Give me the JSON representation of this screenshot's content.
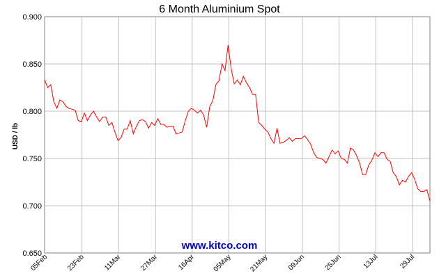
{
  "chart_data": {
    "type": "line",
    "title": "6 Month Aluminium Spot",
    "ylabel": "USD / lb",
    "xlabel": "",
    "watermark": "www.kitco.com",
    "ylim": [
      0.65,
      0.9
    ],
    "y_ticks": [
      "0.900",
      "0.850",
      "0.800",
      "0.750",
      "0.700",
      "0.650"
    ],
    "x_ticks": [
      "05Feb",
      "23Feb",
      "11Mar",
      "27Mar",
      "16Apr",
      "05May",
      "21May",
      "09Jun",
      "25Jun",
      "13Jul",
      "29Jul"
    ],
    "grid": true,
    "colors": {
      "line": "#ff0000",
      "grid": "#c0c0c0",
      "frame": "#808080",
      "watermark": "#0000cc"
    },
    "series": [
      {
        "values": [
          0.833,
          0.825,
          0.828,
          0.81,
          0.803,
          0.812,
          0.81,
          0.805,
          0.803,
          0.802,
          0.801,
          0.79,
          0.789,
          0.798,
          0.79,
          0.796,
          0.8,
          0.794,
          0.789,
          0.794,
          0.794,
          0.785,
          0.788,
          0.778,
          0.769,
          0.772,
          0.781,
          0.781,
          0.79,
          0.776,
          0.784,
          0.79,
          0.791,
          0.789,
          0.782,
          0.788,
          0.785,
          0.792,
          0.786,
          0.786,
          0.783,
          0.784,
          0.784,
          0.776,
          0.777,
          0.778,
          0.79,
          0.8,
          0.803,
          0.801,
          0.798,
          0.801,
          0.796,
          0.783,
          0.805,
          0.811,
          0.828,
          0.832,
          0.85,
          0.843,
          0.87,
          0.845,
          0.829,
          0.833,
          0.828,
          0.837,
          0.83,
          0.825,
          0.818,
          0.818,
          0.788,
          0.785,
          0.781,
          0.778,
          0.771,
          0.766,
          0.782,
          0.766,
          0.767,
          0.769,
          0.772,
          0.768,
          0.771,
          0.771,
          0.771,
          0.774,
          0.77,
          0.765,
          0.756,
          0.751,
          0.75,
          0.749,
          0.745,
          0.752,
          0.759,
          0.755,
          0.758,
          0.75,
          0.749,
          0.745,
          0.761,
          0.759,
          0.753,
          0.745,
          0.733,
          0.733,
          0.743,
          0.748,
          0.756,
          0.752,
          0.756,
          0.756,
          0.749,
          0.747,
          0.735,
          0.731,
          0.722,
          0.727,
          0.725,
          0.731,
          0.735,
          0.728,
          0.718,
          0.715,
          0.715,
          0.717,
          0.705
        ]
      }
    ]
  }
}
